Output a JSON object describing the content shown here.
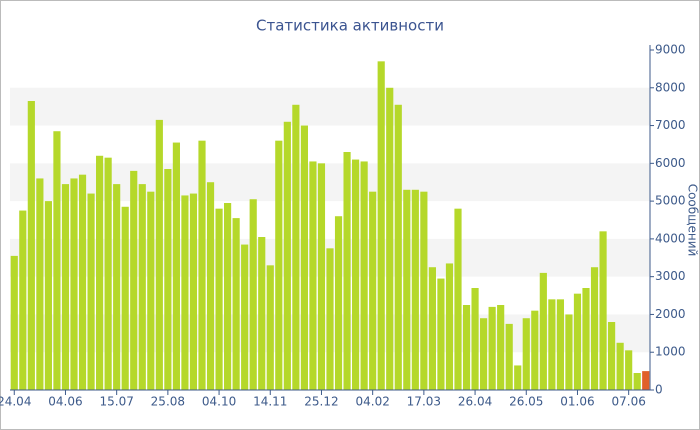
{
  "chart_data": {
    "type": "bar",
    "title": "Статистика активности",
    "y_label": "Сообщений",
    "categories": [
      "24.04",
      null,
      null,
      null,
      null,
      null,
      "04.06",
      null,
      null,
      null,
      null,
      null,
      "15.07",
      null,
      null,
      null,
      null,
      null,
      "25.08",
      null,
      null,
      null,
      null,
      null,
      "04.10",
      null,
      null,
      null,
      null,
      null,
      "14.11",
      null,
      null,
      null,
      null,
      null,
      "25.12",
      null,
      null,
      null,
      null,
      null,
      "04.02",
      null,
      null,
      null,
      null,
      null,
      "17.03",
      null,
      null,
      null,
      null,
      null,
      "26.04",
      null,
      null,
      null,
      null,
      null,
      "26.05",
      null,
      null,
      null,
      null,
      null,
      "01.06",
      null,
      null,
      null,
      null,
      null,
      "07.06",
      null,
      null
    ],
    "values": [
      3550,
      4750,
      7650,
      5600,
      5000,
      6850,
      5450,
      5600,
      5700,
      5200,
      6200,
      6150,
      5450,
      4850,
      5800,
      5450,
      5250,
      7150,
      5850,
      6550,
      5150,
      5200,
      6600,
      5500,
      4800,
      4950,
      4550,
      3850,
      5050,
      4050,
      3300,
      6600,
      7100,
      7550,
      7000,
      6050,
      6000,
      3750,
      4600,
      6300,
      6100,
      6050,
      5250,
      8700,
      8000,
      7550,
      5300,
      5300,
      5250,
      3250,
      2950,
      3350,
      4800,
      2250,
      2700,
      1900,
      2200,
      2250,
      1750,
      650,
      1900,
      2100,
      3100,
      2400,
      2400,
      2000,
      2550,
      2700,
      3250,
      4200,
      1800,
      1250,
      1050,
      450,
      500
    ],
    "colors": [
      "#b5d82a",
      "#b5d82a",
      "#b5d82a",
      "#b5d82a",
      "#b5d82a",
      "#b5d82a",
      "#b5d82a",
      "#b5d82a",
      "#b5d82a",
      "#b5d82a",
      "#b5d82a",
      "#b5d82a",
      "#b5d82a",
      "#b5d82a",
      "#b5d82a",
      "#b5d82a",
      "#b5d82a",
      "#b5d82a",
      "#b5d82a",
      "#b5d82a",
      "#b5d82a",
      "#b5d82a",
      "#b5d82a",
      "#b5d82a",
      "#b5d82a",
      "#b5d82a",
      "#b5d82a",
      "#b5d82a",
      "#b5d82a",
      "#b5d82a",
      "#b5d82a",
      "#b5d82a",
      "#b5d82a",
      "#b5d82a",
      "#b5d82a",
      "#b5d82a",
      "#b5d82a",
      "#b5d82a",
      "#b5d82a",
      "#b5d82a",
      "#b5d82a",
      "#b5d82a",
      "#b5d82a",
      "#b5d82a",
      "#b5d82a",
      "#b5d82a",
      "#b5d82a",
      "#b5d82a",
      "#b5d82a",
      "#b5d82a",
      "#b5d82a",
      "#b5d82a",
      "#b5d82a",
      "#b5d82a",
      "#b5d82a",
      "#b5d82a",
      "#b5d82a",
      "#b5d82a",
      "#b5d82a",
      "#b5d82a",
      "#b5d82a",
      "#b5d82a",
      "#b5d82a",
      "#b5d82a",
      "#b5d82a",
      "#b5d82a",
      "#b5d82a",
      "#b5d82a",
      "#b5d82a",
      "#b5d82a",
      "#b5d82a",
      "#b5d82a",
      "#b5d82a",
      "#b5d82a",
      "#e0602a"
    ],
    "ylim": [
      0,
      9000
    ],
    "yticks": [
      0,
      1000,
      2000,
      3000,
      4000,
      5000,
      6000,
      7000,
      8000,
      9000
    ],
    "grid_bands": true
  }
}
